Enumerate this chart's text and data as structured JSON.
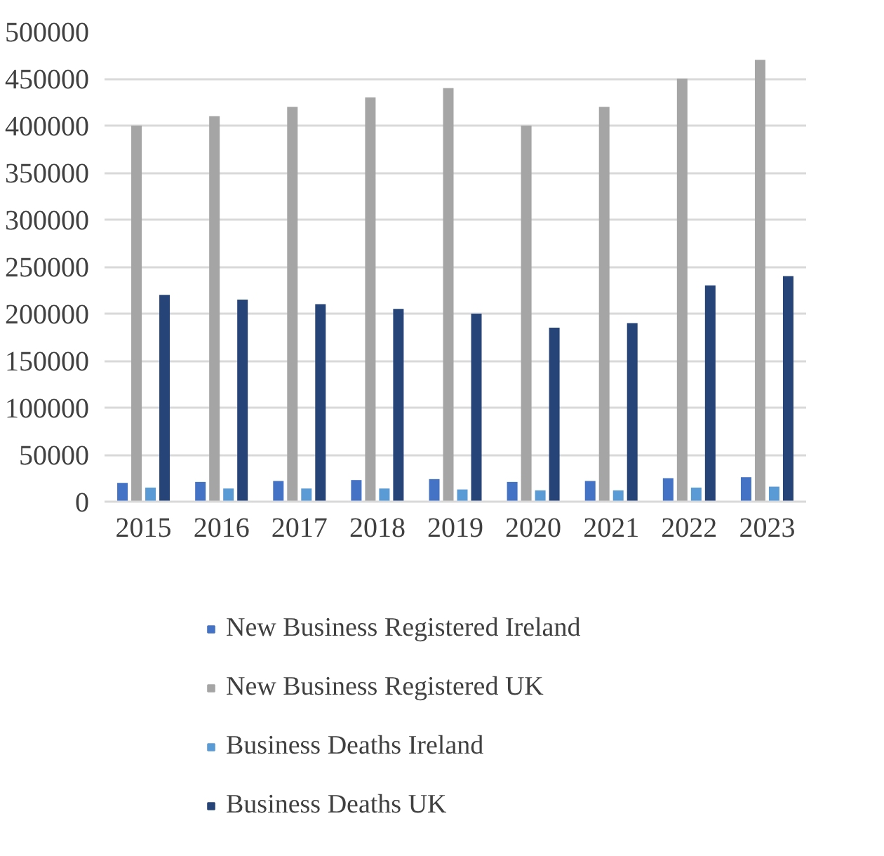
{
  "chart_data": {
    "type": "bar",
    "categories": [
      "2015",
      "2016",
      "2017",
      "2018",
      "2019",
      "2020",
      "2021",
      "2022",
      "2023"
    ],
    "series": [
      {
        "name": "New Business Registered Ireland",
        "color": "#4472c4",
        "values": [
          20000,
          21000,
          22000,
          23000,
          24000,
          21000,
          22000,
          25000,
          26000
        ]
      },
      {
        "name": "New Business Registered UK",
        "color": "#a5a5a5",
        "values": [
          400000,
          410000,
          420000,
          430000,
          440000,
          400000,
          420000,
          450000,
          470000
        ]
      },
      {
        "name": "Business Deaths Ireland",
        "color": "#5b9bd5",
        "values": [
          15000,
          14000,
          14000,
          14000,
          13000,
          12000,
          12000,
          15000,
          16000
        ]
      },
      {
        "name": "Business Deaths UK",
        "color": "#264478",
        "values": [
          220000,
          215000,
          210000,
          205000,
          200000,
          185000,
          190000,
          230000,
          240000
        ]
      }
    ],
    "ylim": [
      0,
      500000
    ],
    "yticks": [
      0,
      50000,
      100000,
      150000,
      200000,
      250000,
      300000,
      350000,
      400000,
      450000,
      500000
    ],
    "grid": "y",
    "legend": "bottom"
  }
}
